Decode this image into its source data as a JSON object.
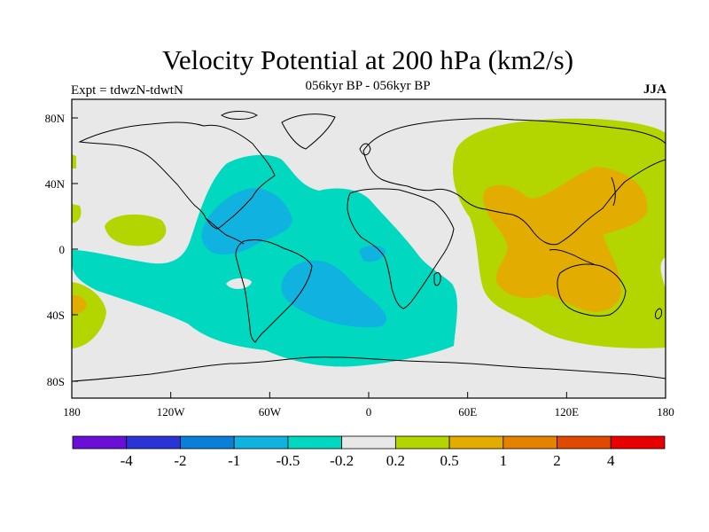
{
  "title": "Velocity Potential at 200 hPa (km2/s)",
  "subtitle": "056kyr BP - 056kyr BP",
  "left_label": "Expt = tdwzN-tdwtN",
  "right_label": "JJA",
  "lat_ticks": [
    "80N",
    "40N",
    "0",
    "40S",
    "80S"
  ],
  "lon_ticks": [
    "180",
    "120W",
    "60W",
    "0",
    "60E",
    "120E",
    "180"
  ],
  "colorbar": {
    "colors": [
      "#6a0fd8",
      "#2a33d6",
      "#0a7fd8",
      "#10b3e0",
      "#00d8c0",
      "#e8e8e8",
      "#b4d600",
      "#e2ad00",
      "#e58200",
      "#e04a00",
      "#e80000"
    ],
    "labels": [
      "-4",
      "-2",
      "-1",
      "-0.5",
      "-0.2",
      "0.2",
      "0.5",
      "1",
      "2",
      "4"
    ]
  },
  "colors": {
    "background": "#e8e8e8",
    "neg_light": "#00d8c0",
    "neg_mid": "#10b3e0",
    "pos_light": "#b4d600",
    "pos_mid": "#e2ad00",
    "coast": "#000000"
  }
}
